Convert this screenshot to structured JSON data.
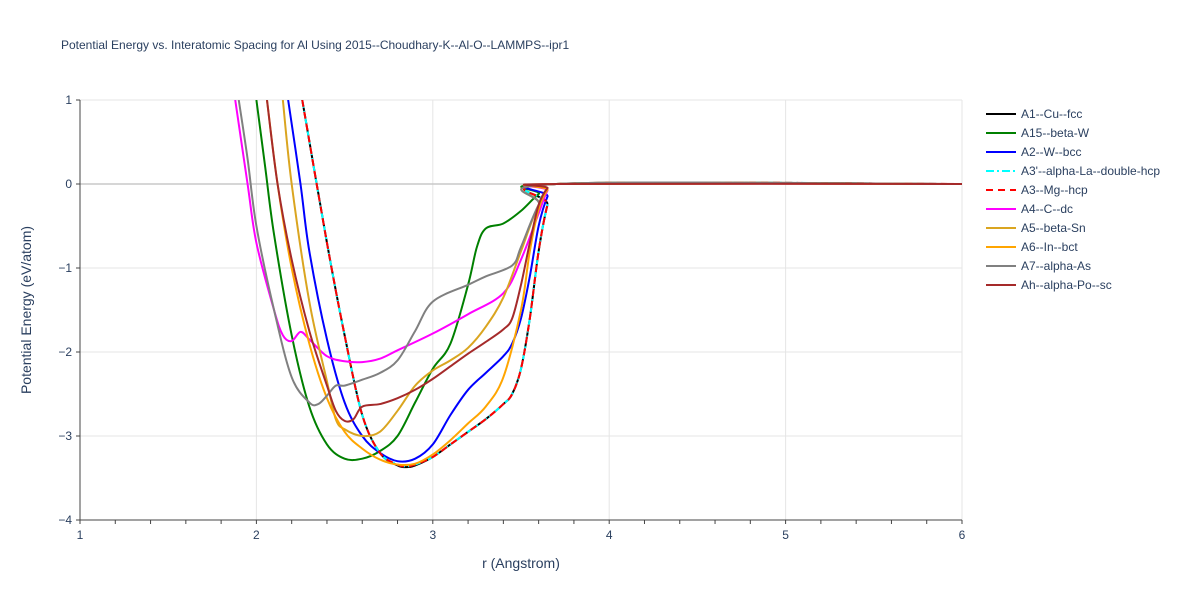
{
  "chart_data": {
    "type": "line",
    "title": "Potential Energy vs. Interatomic Spacing for Al Using 2015--Choudhary-K--Al-O--LAMMPS--ipr1",
    "xlabel": "r (Angstrom)",
    "ylabel": "Potential Energy (eV/atom)",
    "xlim": [
      1,
      6
    ],
    "ylim": [
      -4,
      1
    ],
    "x_ticks": [
      1,
      2,
      3,
      4,
      5,
      6
    ],
    "y_ticks": [
      -4,
      -3,
      -2,
      -1,
      0,
      1
    ],
    "grid": true,
    "legend_position": "right",
    "series": [
      {
        "name": "A1--Cu--fcc",
        "color": "#000000",
        "dash": "solid",
        "points": [
          [
            2.26,
            1.0
          ],
          [
            2.4,
            -0.7
          ],
          [
            2.5,
            -1.8
          ],
          [
            2.6,
            -2.75
          ],
          [
            2.7,
            -3.2
          ],
          [
            2.8,
            -3.35
          ],
          [
            2.85,
            -3.37
          ],
          [
            2.9,
            -3.35
          ],
          [
            3.0,
            -3.25
          ],
          [
            3.1,
            -3.1
          ],
          [
            3.2,
            -2.95
          ],
          [
            3.3,
            -2.8
          ],
          [
            3.4,
            -2.62
          ],
          [
            3.45,
            -2.5
          ],
          [
            3.5,
            -2.2
          ],
          [
            3.55,
            -1.6
          ],
          [
            3.6,
            -0.8
          ],
          [
            3.65,
            -0.25
          ],
          [
            3.7,
            0.0
          ],
          [
            6.0,
            0.0
          ]
        ]
      },
      {
        "name": "A15--beta-W",
        "color": "#008000",
        "dash": "solid",
        "points": [
          [
            2.0,
            1.0
          ],
          [
            2.05,
            0.2
          ],
          [
            2.1,
            -0.6
          ],
          [
            2.2,
            -1.8
          ],
          [
            2.3,
            -2.65
          ],
          [
            2.4,
            -3.1
          ],
          [
            2.5,
            -3.27
          ],
          [
            2.6,
            -3.27
          ],
          [
            2.7,
            -3.18
          ],
          [
            2.8,
            -3.0
          ],
          [
            2.9,
            -2.6
          ],
          [
            3.0,
            -2.2
          ],
          [
            3.1,
            -1.9
          ],
          [
            3.2,
            -1.2
          ],
          [
            3.25,
            -0.75
          ],
          [
            3.3,
            -0.53
          ],
          [
            3.4,
            -0.47
          ],
          [
            3.5,
            -0.32
          ],
          [
            3.6,
            -0.12
          ],
          [
            3.7,
            0.0
          ],
          [
            6.0,
            0.0
          ]
        ]
      },
      {
        "name": "A2--W--bcc",
        "color": "#0000ff",
        "dash": "solid",
        "points": [
          [
            2.18,
            1.0
          ],
          [
            2.25,
            0.0
          ],
          [
            2.3,
            -0.8
          ],
          [
            2.4,
            -1.85
          ],
          [
            2.5,
            -2.6
          ],
          [
            2.6,
            -3.0
          ],
          [
            2.7,
            -3.2
          ],
          [
            2.8,
            -3.3
          ],
          [
            2.9,
            -3.27
          ],
          [
            3.0,
            -3.1
          ],
          [
            3.1,
            -2.75
          ],
          [
            3.2,
            -2.45
          ],
          [
            3.3,
            -2.25
          ],
          [
            3.4,
            -2.05
          ],
          [
            3.45,
            -1.9
          ],
          [
            3.5,
            -1.6
          ],
          [
            3.55,
            -1.1
          ],
          [
            3.6,
            -0.5
          ],
          [
            3.65,
            -0.15
          ],
          [
            3.7,
            0.0
          ],
          [
            6.0,
            0.0
          ]
        ]
      },
      {
        "name": "A3'--alpha-La--double-hcp",
        "color": "#00ffff",
        "dash": "dashdot",
        "points": [
          [
            2.26,
            1.0
          ],
          [
            2.4,
            -0.7
          ],
          [
            2.5,
            -1.8
          ],
          [
            2.6,
            -2.75
          ],
          [
            2.7,
            -3.2
          ],
          [
            2.8,
            -3.34
          ],
          [
            2.85,
            -3.36
          ],
          [
            2.9,
            -3.34
          ],
          [
            3.0,
            -3.25
          ],
          [
            3.1,
            -3.1
          ],
          [
            3.2,
            -2.95
          ],
          [
            3.3,
            -2.8
          ],
          [
            3.4,
            -2.62
          ],
          [
            3.45,
            -2.5
          ],
          [
            3.5,
            -2.2
          ],
          [
            3.55,
            -1.6
          ],
          [
            3.6,
            -0.8
          ],
          [
            3.65,
            -0.25
          ],
          [
            3.7,
            0.0
          ],
          [
            6.0,
            0.0
          ]
        ]
      },
      {
        "name": "A3--Mg--hcp",
        "color": "#ff0000",
        "dash": "dash",
        "points": [
          [
            2.26,
            1.0
          ],
          [
            2.4,
            -0.7
          ],
          [
            2.5,
            -1.8
          ],
          [
            2.6,
            -2.75
          ],
          [
            2.7,
            -3.2
          ],
          [
            2.8,
            -3.34
          ],
          [
            2.85,
            -3.36
          ],
          [
            2.9,
            -3.34
          ],
          [
            3.0,
            -3.25
          ],
          [
            3.1,
            -3.1
          ],
          [
            3.2,
            -2.95
          ],
          [
            3.3,
            -2.8
          ],
          [
            3.4,
            -2.62
          ],
          [
            3.45,
            -2.5
          ],
          [
            3.5,
            -2.2
          ],
          [
            3.55,
            -1.6
          ],
          [
            3.6,
            -0.8
          ],
          [
            3.65,
            -0.25
          ],
          [
            3.7,
            0.0
          ],
          [
            6.0,
            0.0
          ]
        ]
      },
      {
        "name": "A4--C--dc",
        "color": "#ff00ff",
        "dash": "solid",
        "points": [
          [
            1.88,
            1.0
          ],
          [
            1.95,
            0.0
          ],
          [
            2.0,
            -0.7
          ],
          [
            2.1,
            -1.5
          ],
          [
            2.15,
            -1.8
          ],
          [
            2.2,
            -1.87
          ],
          [
            2.25,
            -1.76
          ],
          [
            2.3,
            -1.85
          ],
          [
            2.4,
            -2.05
          ],
          [
            2.5,
            -2.11
          ],
          [
            2.6,
            -2.12
          ],
          [
            2.7,
            -2.08
          ],
          [
            2.8,
            -1.98
          ],
          [
            3.0,
            -1.78
          ],
          [
            3.2,
            -1.55
          ],
          [
            3.4,
            -1.3
          ],
          [
            3.5,
            -0.9
          ],
          [
            3.6,
            -0.35
          ],
          [
            3.65,
            -0.08
          ],
          [
            3.7,
            0.0
          ],
          [
            6.0,
            0.0
          ]
        ]
      },
      {
        "name": "A5--beta-Sn",
        "color": "#daa520",
        "dash": "solid",
        "points": [
          [
            2.15,
            1.0
          ],
          [
            2.2,
            0.0
          ],
          [
            2.3,
            -1.4
          ],
          [
            2.4,
            -2.35
          ],
          [
            2.45,
            -2.8
          ],
          [
            2.5,
            -2.92
          ],
          [
            2.6,
            -3.0
          ],
          [
            2.7,
            -2.95
          ],
          [
            2.8,
            -2.7
          ],
          [
            2.9,
            -2.4
          ],
          [
            3.0,
            -2.22
          ],
          [
            3.1,
            -2.1
          ],
          [
            3.2,
            -1.95
          ],
          [
            3.3,
            -1.7
          ],
          [
            3.4,
            -1.35
          ],
          [
            3.5,
            -0.8
          ],
          [
            3.6,
            -0.25
          ],
          [
            3.7,
            0.0
          ],
          [
            6.0,
            0.0
          ]
        ]
      },
      {
        "name": "A6--In--bct",
        "color": "#ffa500",
        "dash": "solid",
        "points": [
          [
            2.06,
            1.0
          ],
          [
            2.12,
            0.0
          ],
          [
            2.2,
            -1.0
          ],
          [
            2.3,
            -1.9
          ],
          [
            2.4,
            -2.55
          ],
          [
            2.5,
            -2.95
          ],
          [
            2.6,
            -3.15
          ],
          [
            2.7,
            -3.28
          ],
          [
            2.8,
            -3.34
          ],
          [
            2.9,
            -3.33
          ],
          [
            3.0,
            -3.22
          ],
          [
            3.1,
            -3.05
          ],
          [
            3.2,
            -2.85
          ],
          [
            3.3,
            -2.65
          ],
          [
            3.4,
            -2.3
          ],
          [
            3.5,
            -1.5
          ],
          [
            3.55,
            -0.8
          ],
          [
            3.6,
            -0.3
          ],
          [
            3.65,
            -0.07
          ],
          [
            3.7,
            0.0
          ],
          [
            6.0,
            0.0
          ]
        ]
      },
      {
        "name": "A7--alpha-As",
        "color": "#808080",
        "dash": "solid",
        "points": [
          [
            1.9,
            1.0
          ],
          [
            1.95,
            0.3
          ],
          [
            2.0,
            -0.5
          ],
          [
            2.1,
            -1.5
          ],
          [
            2.2,
            -2.3
          ],
          [
            2.3,
            -2.6
          ],
          [
            2.35,
            -2.62
          ],
          [
            2.4,
            -2.52
          ],
          [
            2.45,
            -2.4
          ],
          [
            2.5,
            -2.4
          ],
          [
            2.6,
            -2.33
          ],
          [
            2.7,
            -2.25
          ],
          [
            2.8,
            -2.1
          ],
          [
            2.9,
            -1.75
          ],
          [
            3.0,
            -1.4
          ],
          [
            3.2,
            -1.2
          ],
          [
            3.3,
            -1.1
          ],
          [
            3.45,
            -0.97
          ],
          [
            3.5,
            -0.75
          ],
          [
            3.6,
            -0.25
          ],
          [
            3.7,
            0.0
          ],
          [
            6.0,
            0.0
          ]
        ]
      },
      {
        "name": "Ah--alpha-Po--sc",
        "color": "#a52a2a",
        "dash": "solid",
        "points": [
          [
            2.06,
            1.0
          ],
          [
            2.12,
            0.0
          ],
          [
            2.2,
            -0.9
          ],
          [
            2.3,
            -1.75
          ],
          [
            2.4,
            -2.4
          ],
          [
            2.45,
            -2.7
          ],
          [
            2.5,
            -2.82
          ],
          [
            2.55,
            -2.8
          ],
          [
            2.6,
            -2.65
          ],
          [
            2.7,
            -2.62
          ],
          [
            2.8,
            -2.55
          ],
          [
            2.9,
            -2.45
          ],
          [
            3.0,
            -2.32
          ],
          [
            3.1,
            -2.17
          ],
          [
            3.2,
            -2.02
          ],
          [
            3.3,
            -1.88
          ],
          [
            3.4,
            -1.73
          ],
          [
            3.45,
            -1.6
          ],
          [
            3.5,
            -1.2
          ],
          [
            3.55,
            -0.7
          ],
          [
            3.6,
            -0.25
          ],
          [
            3.65,
            -0.05
          ],
          [
            3.7,
            0.0
          ],
          [
            6.0,
            0.0
          ]
        ]
      }
    ]
  }
}
